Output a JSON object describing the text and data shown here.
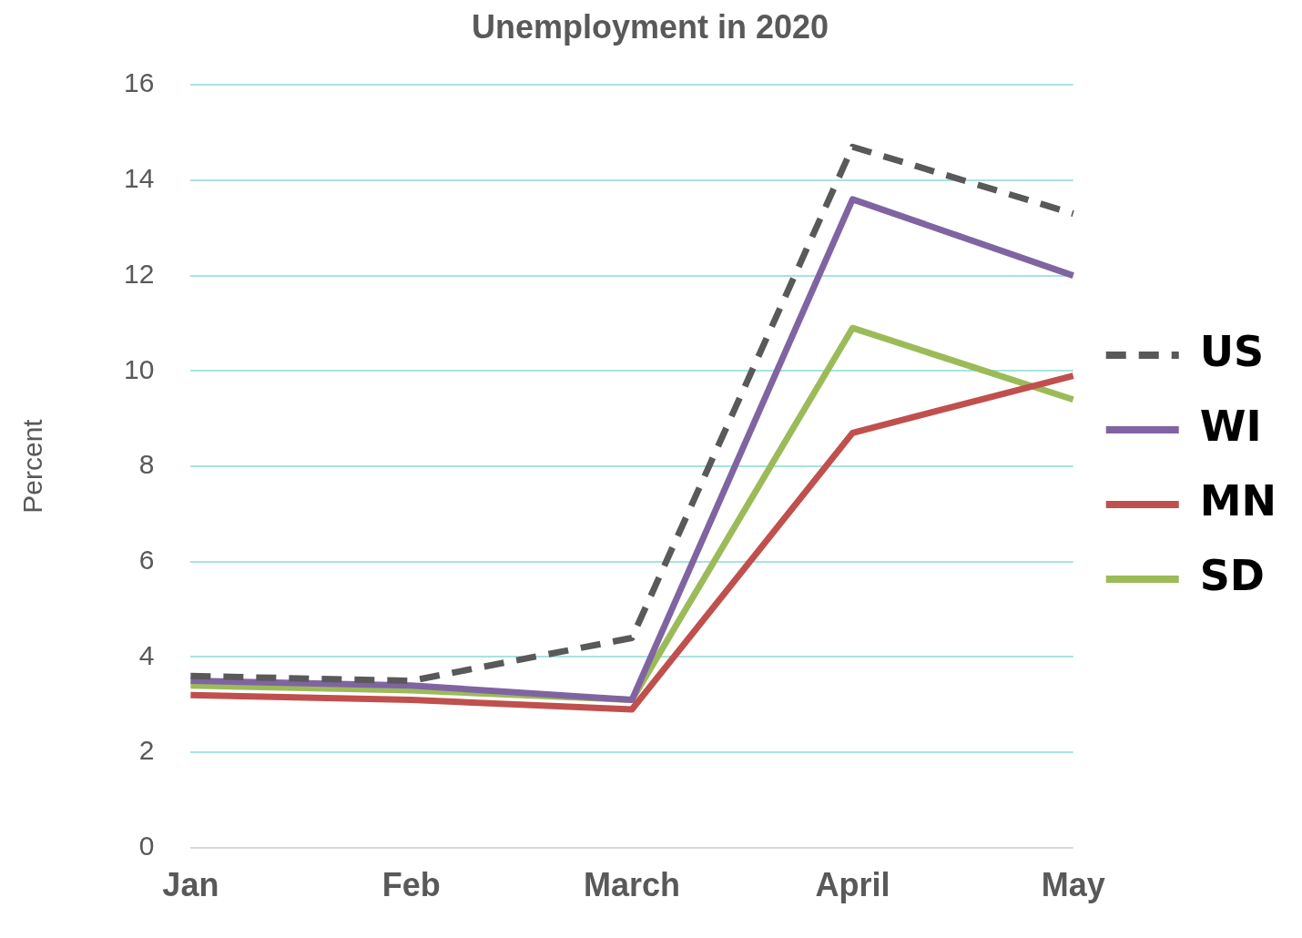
{
  "chart_data": {
    "type": "line",
    "title": "Unemployment in 2020",
    "ylabel": "Percent",
    "categories": [
      "Jan",
      "Feb",
      "March",
      "April",
      "May"
    ],
    "series": [
      {
        "name": "US",
        "color": "#595959",
        "line_style": "dashed",
        "values": [
          3.6,
          3.5,
          4.4,
          14.7,
          13.3
        ]
      },
      {
        "name": "WI",
        "color": "#8064a2",
        "values": [
          3.5,
          3.4,
          3.1,
          13.6,
          12.0
        ]
      },
      {
        "name": "MN",
        "color": "#c0504d",
        "values": [
          3.2,
          3.1,
          2.9,
          8.7,
          9.9
        ]
      },
      {
        "name": "SD",
        "color": "#9bbb59",
        "values": [
          3.4,
          3.3,
          3.1,
          10.9,
          9.4
        ]
      }
    ],
    "ylim": [
      0,
      16
    ],
    "yticks": [
      0,
      2,
      4,
      6,
      8,
      10,
      12,
      14,
      16
    ],
    "grid": "y",
    "legend": "right",
    "marker": "none",
    "line_style": "solid"
  }
}
